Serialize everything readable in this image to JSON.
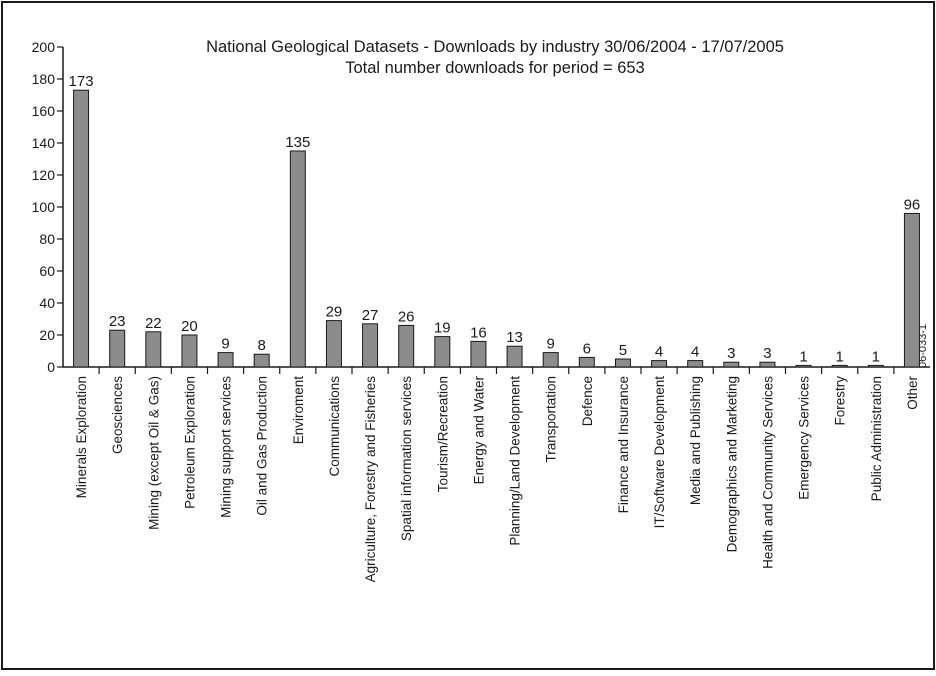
{
  "chart_data": {
    "type": "bar",
    "title": "National Geological Datasets - Downloads by industry 30/06/2004 - 17/07/2005",
    "subtitle": "Total number downloads for period = 653",
    "xlabel": "",
    "ylabel": "",
    "ylim": [
      0,
      200
    ],
    "yticks": [
      0,
      20,
      40,
      60,
      80,
      100,
      120,
      140,
      160,
      180,
      200
    ],
    "grid": false,
    "legend": "none",
    "categories": [
      "Minerals Exploration",
      "Geosciences",
      "Mining (except Oil & Gas)",
      "Petroleum Exploration",
      "Mining support services",
      "Oil and Gas Production",
      "Enviroment",
      "Communications",
      "Agriculture, Forestry and Fisheries",
      "Spatial information services",
      "Tourism/Recreation",
      "Energy and Water",
      "Planning/Land Development",
      "Transportation",
      "Defence",
      "Finance and Insurance",
      "IT/Software Development",
      "Media and Publishing",
      "Demographics and Marketing",
      "Health and Community Services",
      "Emergency Services",
      "Forestry",
      "Public Administration",
      "Other"
    ],
    "values": [
      173,
      23,
      22,
      20,
      9,
      8,
      135,
      29,
      27,
      26,
      19,
      16,
      13,
      9,
      6,
      5,
      4,
      4,
      3,
      3,
      1,
      1,
      1,
      96
    ],
    "colors": {
      "bar": "#8c8c8c",
      "outline": "#1a1a1a"
    }
  },
  "figure_code": "06-033-1"
}
